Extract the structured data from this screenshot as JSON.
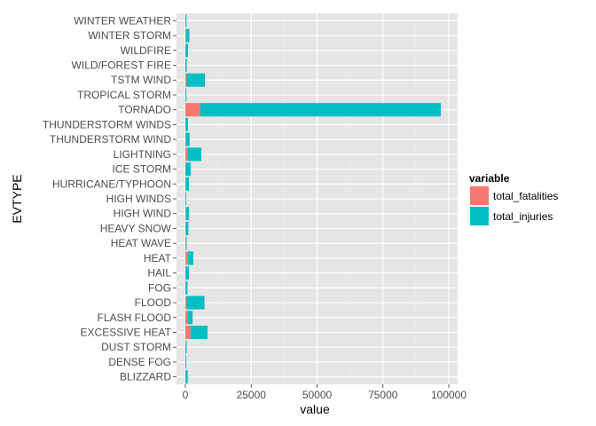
{
  "chart_data": {
    "type": "bar",
    "orientation": "horizontal",
    "stacked": true,
    "xlabel": "value",
    "ylabel": "EVTYPE",
    "xlim": [
      0,
      100000
    ],
    "x_ticks": [
      0,
      25000,
      50000,
      75000,
      100000
    ],
    "x_tick_labels": [
      "0",
      "25000",
      "50000",
      "75000",
      "100000"
    ],
    "grid": true,
    "legend_position": "right",
    "legend_title": "variable",
    "categories": [
      "WINTER WEATHER",
      "WINTER STORM",
      "WILDFIRE",
      "WILD/FOREST FIRE",
      "TSTM WIND",
      "TROPICAL STORM",
      "TORNADO",
      "THUNDERSTORM WINDS",
      "THUNDERSTORM WIND",
      "LIGHTNING",
      "ICE STORM",
      "HURRICANE/TYPHOON",
      "HIGH WINDS",
      "HIGH WIND",
      "HEAVY SNOW",
      "HEAT WAVE",
      "HEAT",
      "HAIL",
      "FOG",
      "FLOOD",
      "FLASH FLOOD",
      "EXCESSIVE HEAT",
      "DUST STORM",
      "DENSE FOG",
      "BLIZZARD"
    ],
    "series": [
      {
        "name": "total_fatalities",
        "color": "#F8766D",
        "values": [
          33,
          206,
          75,
          12,
          504,
          58,
          5633,
          64,
          133,
          816,
          89,
          64,
          35,
          248,
          127,
          172,
          937,
          15,
          62,
          470,
          978,
          1903,
          22,
          18,
          101
        ]
      },
      {
        "name": "total_injuries",
        "color": "#00BFC4",
        "values": [
          398,
          1321,
          911,
          545,
          6957,
          340,
          91346,
          908,
          1488,
          5230,
          1975,
          1275,
          302,
          1137,
          1021,
          309,
          2100,
          1361,
          734,
          6789,
          1777,
          6525,
          440,
          342,
          805
        ]
      }
    ]
  }
}
